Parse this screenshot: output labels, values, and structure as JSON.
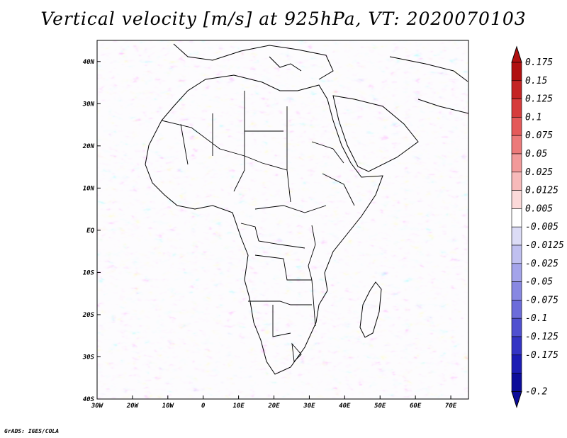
{
  "title": "Vertical velocity [m/s] at 925hPa, VT: 2020070103",
  "credit": "GrADS: IGES/COLA",
  "map": {
    "type": "shaded-field-map",
    "variable": "Vertical velocity",
    "units": "m/s",
    "level": "925hPa",
    "valid_time": "2020070103",
    "region": "Africa",
    "lon_range": [
      -30,
      75
    ],
    "lat_range": [
      -40,
      45
    ],
    "x_ticks": [
      "30W",
      "20W",
      "10W",
      "0",
      "10E",
      "20E",
      "30E",
      "40E",
      "50E",
      "60E",
      "70E"
    ],
    "y_ticks": [
      "40S",
      "30S",
      "20S",
      "10S",
      "EQ",
      "10N",
      "20N",
      "30N",
      "40N"
    ],
    "colorbar": {
      "labels": [
        "0.175",
        "0.15",
        "0.125",
        "0.1",
        "0.075",
        "0.05",
        "0.025",
        "0.0125",
        "0.005",
        "-0.005",
        "-0.0125",
        "-0.025",
        "-0.05",
        "-0.075",
        "-0.1",
        "-0.125",
        "-0.175",
        "-0.2"
      ],
      "colors": [
        "#b01010",
        "#c42424",
        "#d63c3c",
        "#e45a5a",
        "#ec7a7a",
        "#f29a9a",
        "#f7baba",
        "#fbd9d9",
        "#ffffff",
        "#dcdcf6",
        "#c0c0f0",
        "#a4a4ea",
        "#8888e2",
        "#6c6cda",
        "#5050d0",
        "#3434c4",
        "#1c1cb4",
        "#0c0c9a"
      ]
    }
  }
}
